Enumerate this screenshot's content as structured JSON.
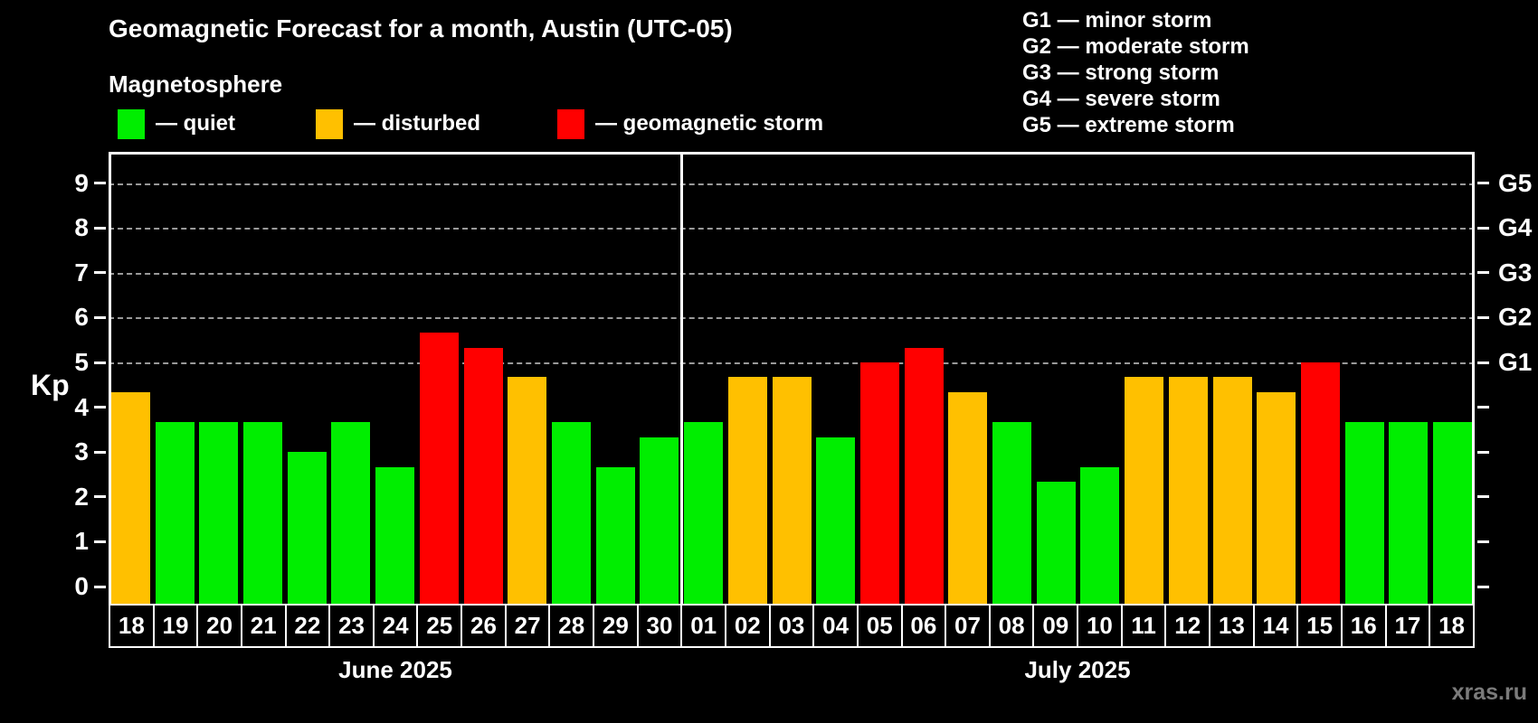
{
  "header": {
    "title": "Geomagnetic Forecast for a month, Austin (UTC-05)",
    "subtitle": "Magnetosphere"
  },
  "legend": [
    {
      "key": "quiet",
      "label": "— quiet",
      "color": "#00ee00"
    },
    {
      "key": "disturbed",
      "label": "— disturbed",
      "color": "#ffc000"
    },
    {
      "key": "storm",
      "label": "— geomagnetic storm",
      "color": "#ff0000"
    }
  ],
  "storm_scale": [
    "G1 — minor storm",
    "G2 — moderate storm",
    "G3 — strong storm",
    "G4 — severe storm",
    "G5 — extreme storm"
  ],
  "watermark": "xras.ru",
  "chart_data": {
    "type": "bar",
    "ylabel": "Kp",
    "ylim": [
      0,
      9
    ],
    "y_ticks": [
      0,
      1,
      2,
      3,
      4,
      5,
      6,
      7,
      8,
      9
    ],
    "gridlines_at": [
      5,
      6,
      7,
      8,
      9
    ],
    "right_axis_labels": [
      {
        "value": 5,
        "label": "G1"
      },
      {
        "value": 6,
        "label": "G2"
      },
      {
        "value": 7,
        "label": "G3"
      },
      {
        "value": 8,
        "label": "G4"
      },
      {
        "value": 9,
        "label": "G5"
      }
    ],
    "grid": true,
    "legend_position": "top",
    "months": [
      {
        "label": "June 2025",
        "days": [
          "18",
          "19",
          "20",
          "21",
          "22",
          "23",
          "24",
          "25",
          "26",
          "27",
          "28",
          "29",
          "30"
        ],
        "values": [
          4.33,
          3.67,
          3.67,
          3.67,
          3.0,
          3.67,
          2.67,
          5.67,
          5.33,
          4.67,
          3.67,
          2.67,
          3.33
        ],
        "status": [
          "disturbed",
          "quiet",
          "quiet",
          "quiet",
          "quiet",
          "quiet",
          "quiet",
          "storm",
          "storm",
          "disturbed",
          "quiet",
          "quiet",
          "quiet"
        ]
      },
      {
        "label": "July 2025",
        "days": [
          "01",
          "02",
          "03",
          "04",
          "05",
          "06",
          "07",
          "08",
          "09",
          "10",
          "11",
          "12",
          "13",
          "14",
          "15",
          "16",
          "17",
          "18"
        ],
        "values": [
          3.67,
          4.67,
          4.67,
          3.33,
          5.0,
          5.33,
          4.33,
          3.67,
          2.33,
          2.67,
          4.67,
          4.67,
          4.67,
          4.33,
          5.0,
          3.67,
          3.67,
          3.67
        ],
        "status": [
          "quiet",
          "disturbed",
          "disturbed",
          "quiet",
          "storm",
          "storm",
          "disturbed",
          "quiet",
          "quiet",
          "quiet",
          "disturbed",
          "disturbed",
          "disturbed",
          "disturbed",
          "storm",
          "quiet",
          "quiet",
          "quiet"
        ]
      }
    ]
  }
}
